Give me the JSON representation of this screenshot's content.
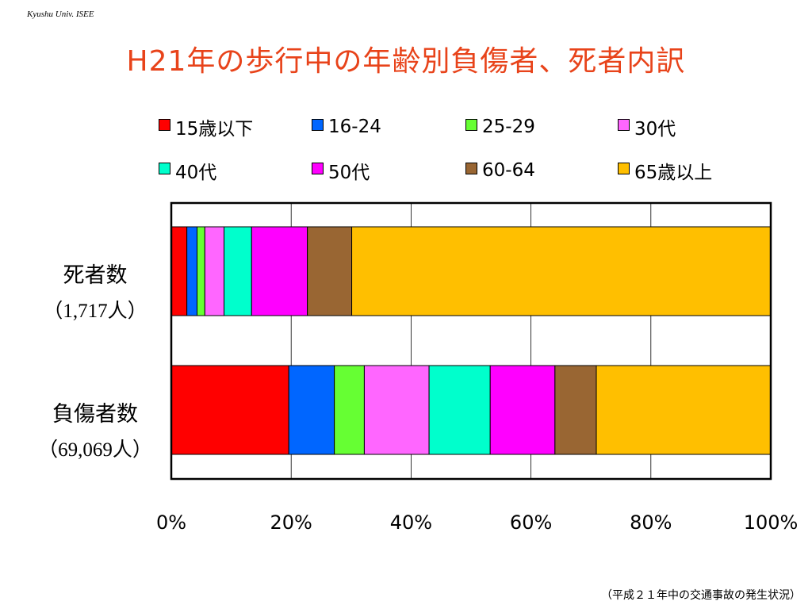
{
  "header_note": "Kyushu Univ. ISEE",
  "title": "H21年の歩行中の年齢別負傷者、死者内訳",
  "source": "（平成２１年中の交通事故の発生状況）",
  "chart_data": {
    "type": "bar",
    "orientation": "horizontal",
    "stacked": true,
    "percent": true,
    "categories": [
      {
        "name": "死者数",
        "count_label": "（1,717人）"
      },
      {
        "name": "負傷者数",
        "count_label": "（69,069人）"
      }
    ],
    "series": [
      {
        "name": "15歳以下",
        "color": "#ff0000",
        "values": [
          2.6,
          19.6
        ]
      },
      {
        "name": "16-24",
        "color": "#0066ff",
        "values": [
          1.7,
          7.6
        ]
      },
      {
        "name": "25-29",
        "color": "#66ff33",
        "values": [
          1.3,
          5.0
        ]
      },
      {
        "name": "30代",
        "color": "#ff66ff",
        "values": [
          3.2,
          10.8
        ]
      },
      {
        "name": "40代",
        "color": "#00ffcc",
        "values": [
          4.6,
          10.2
        ]
      },
      {
        "name": "50代",
        "color": "#ff00ff",
        "values": [
          9.3,
          10.8
        ]
      },
      {
        "name": "60-64",
        "color": "#996633",
        "values": [
          7.4,
          6.9
        ]
      },
      {
        "name": "65歳以上",
        "color": "#ffbf00",
        "values": [
          69.9,
          29.1
        ]
      }
    ],
    "xlim": [
      0,
      100
    ],
    "xticks": [
      "0%",
      "20%",
      "40%",
      "60%",
      "80%",
      "100%"
    ],
    "grid": true,
    "legend_position": "top"
  }
}
